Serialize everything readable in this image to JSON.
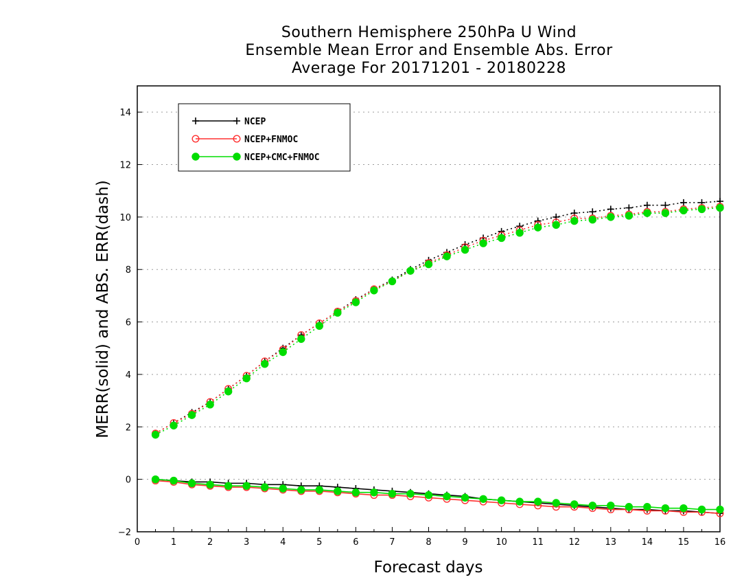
{
  "chart_data": {
    "type": "line",
    "title_lines": [
      "Southern Hemisphere 250hPa U Wind",
      "Ensemble Mean Error and Ensemble Abs. Error",
      "Average For 20171201 - 20180228"
    ],
    "xlabel": "Forecast days",
    "ylabel": "MERR(solid) and ABS. ERR(dash)",
    "xlim": [
      0,
      16
    ],
    "ylim": [
      -2,
      15
    ],
    "xticks": [
      0,
      1,
      2,
      3,
      4,
      5,
      6,
      7,
      8,
      9,
      10,
      11,
      12,
      13,
      14,
      15,
      16
    ],
    "yticks": [
      -2,
      0,
      2,
      4,
      6,
      8,
      10,
      12,
      14
    ],
    "grid": "horizontal dotted",
    "legend_position": "top-left",
    "x": [
      0.5,
      1,
      1.5,
      2,
      2.5,
      3,
      3.5,
      4,
      4.5,
      5,
      5.5,
      6,
      6.5,
      7,
      7.5,
      8,
      8.5,
      9,
      9.5,
      10,
      10.5,
      11,
      11.5,
      12,
      12.5,
      13,
      13.5,
      14,
      14.5,
      15,
      15.5,
      16
    ],
    "series": [
      {
        "name": "NCEP",
        "color": "#000000",
        "marker": "plus",
        "merr": [
          0.0,
          -0.05,
          -0.1,
          -0.1,
          -0.15,
          -0.15,
          -0.2,
          -0.2,
          -0.25,
          -0.25,
          -0.3,
          -0.35,
          -0.4,
          -0.45,
          -0.5,
          -0.55,
          -0.6,
          -0.65,
          -0.75,
          -0.8,
          -0.85,
          -0.9,
          -0.95,
          -1.0,
          -1.05,
          -1.1,
          -1.15,
          -1.15,
          -1.2,
          -1.2,
          -1.25,
          -1.3
        ],
        "abs_err": [
          1.75,
          2.15,
          2.55,
          2.95,
          3.45,
          3.95,
          4.5,
          5.0,
          5.5,
          5.95,
          6.4,
          6.85,
          7.25,
          7.6,
          8.0,
          8.35,
          8.65,
          8.95,
          9.2,
          9.45,
          9.65,
          9.85,
          10.0,
          10.15,
          10.2,
          10.3,
          10.35,
          10.45,
          10.45,
          10.55,
          10.55,
          10.6
        ]
      },
      {
        "name": "NCEP+FNMOC",
        "color": "#ff3030",
        "marker": "open-circle",
        "merr": [
          -0.05,
          -0.1,
          -0.2,
          -0.25,
          -0.3,
          -0.3,
          -0.35,
          -0.4,
          -0.45,
          -0.45,
          -0.5,
          -0.55,
          -0.6,
          -0.6,
          -0.65,
          -0.7,
          -0.75,
          -0.8,
          -0.85,
          -0.9,
          -0.95,
          -1.0,
          -1.05,
          -1.05,
          -1.1,
          -1.15,
          -1.15,
          -1.2,
          -1.2,
          -1.25,
          -1.25,
          -1.3
        ],
        "abs_err": [
          1.75,
          2.15,
          2.5,
          2.95,
          3.45,
          3.95,
          4.5,
          4.95,
          5.5,
          5.95,
          6.4,
          6.8,
          7.25,
          7.55,
          7.95,
          8.25,
          8.55,
          8.85,
          9.1,
          9.3,
          9.5,
          9.7,
          9.8,
          9.95,
          9.95,
          10.05,
          10.1,
          10.2,
          10.2,
          10.3,
          10.35,
          10.4
        ]
      },
      {
        "name": "NCEP+CMC+FNMOC",
        "color": "#00dd00",
        "marker": "filled-circle",
        "merr": [
          0.0,
          -0.05,
          -0.15,
          -0.2,
          -0.25,
          -0.25,
          -0.3,
          -0.35,
          -0.4,
          -0.4,
          -0.45,
          -0.5,
          -0.5,
          -0.55,
          -0.55,
          -0.6,
          -0.65,
          -0.7,
          -0.75,
          -0.8,
          -0.85,
          -0.85,
          -0.9,
          -0.95,
          -1.0,
          -1.0,
          -1.05,
          -1.05,
          -1.1,
          -1.1,
          -1.15,
          -1.15
        ],
        "abs_err": [
          1.7,
          2.05,
          2.45,
          2.85,
          3.35,
          3.85,
          4.4,
          4.85,
          5.35,
          5.85,
          6.35,
          6.75,
          7.2,
          7.55,
          7.95,
          8.2,
          8.5,
          8.75,
          9.0,
          9.2,
          9.4,
          9.6,
          9.7,
          9.85,
          9.9,
          10.0,
          10.05,
          10.15,
          10.15,
          10.25,
          10.3,
          10.35
        ]
      }
    ]
  }
}
